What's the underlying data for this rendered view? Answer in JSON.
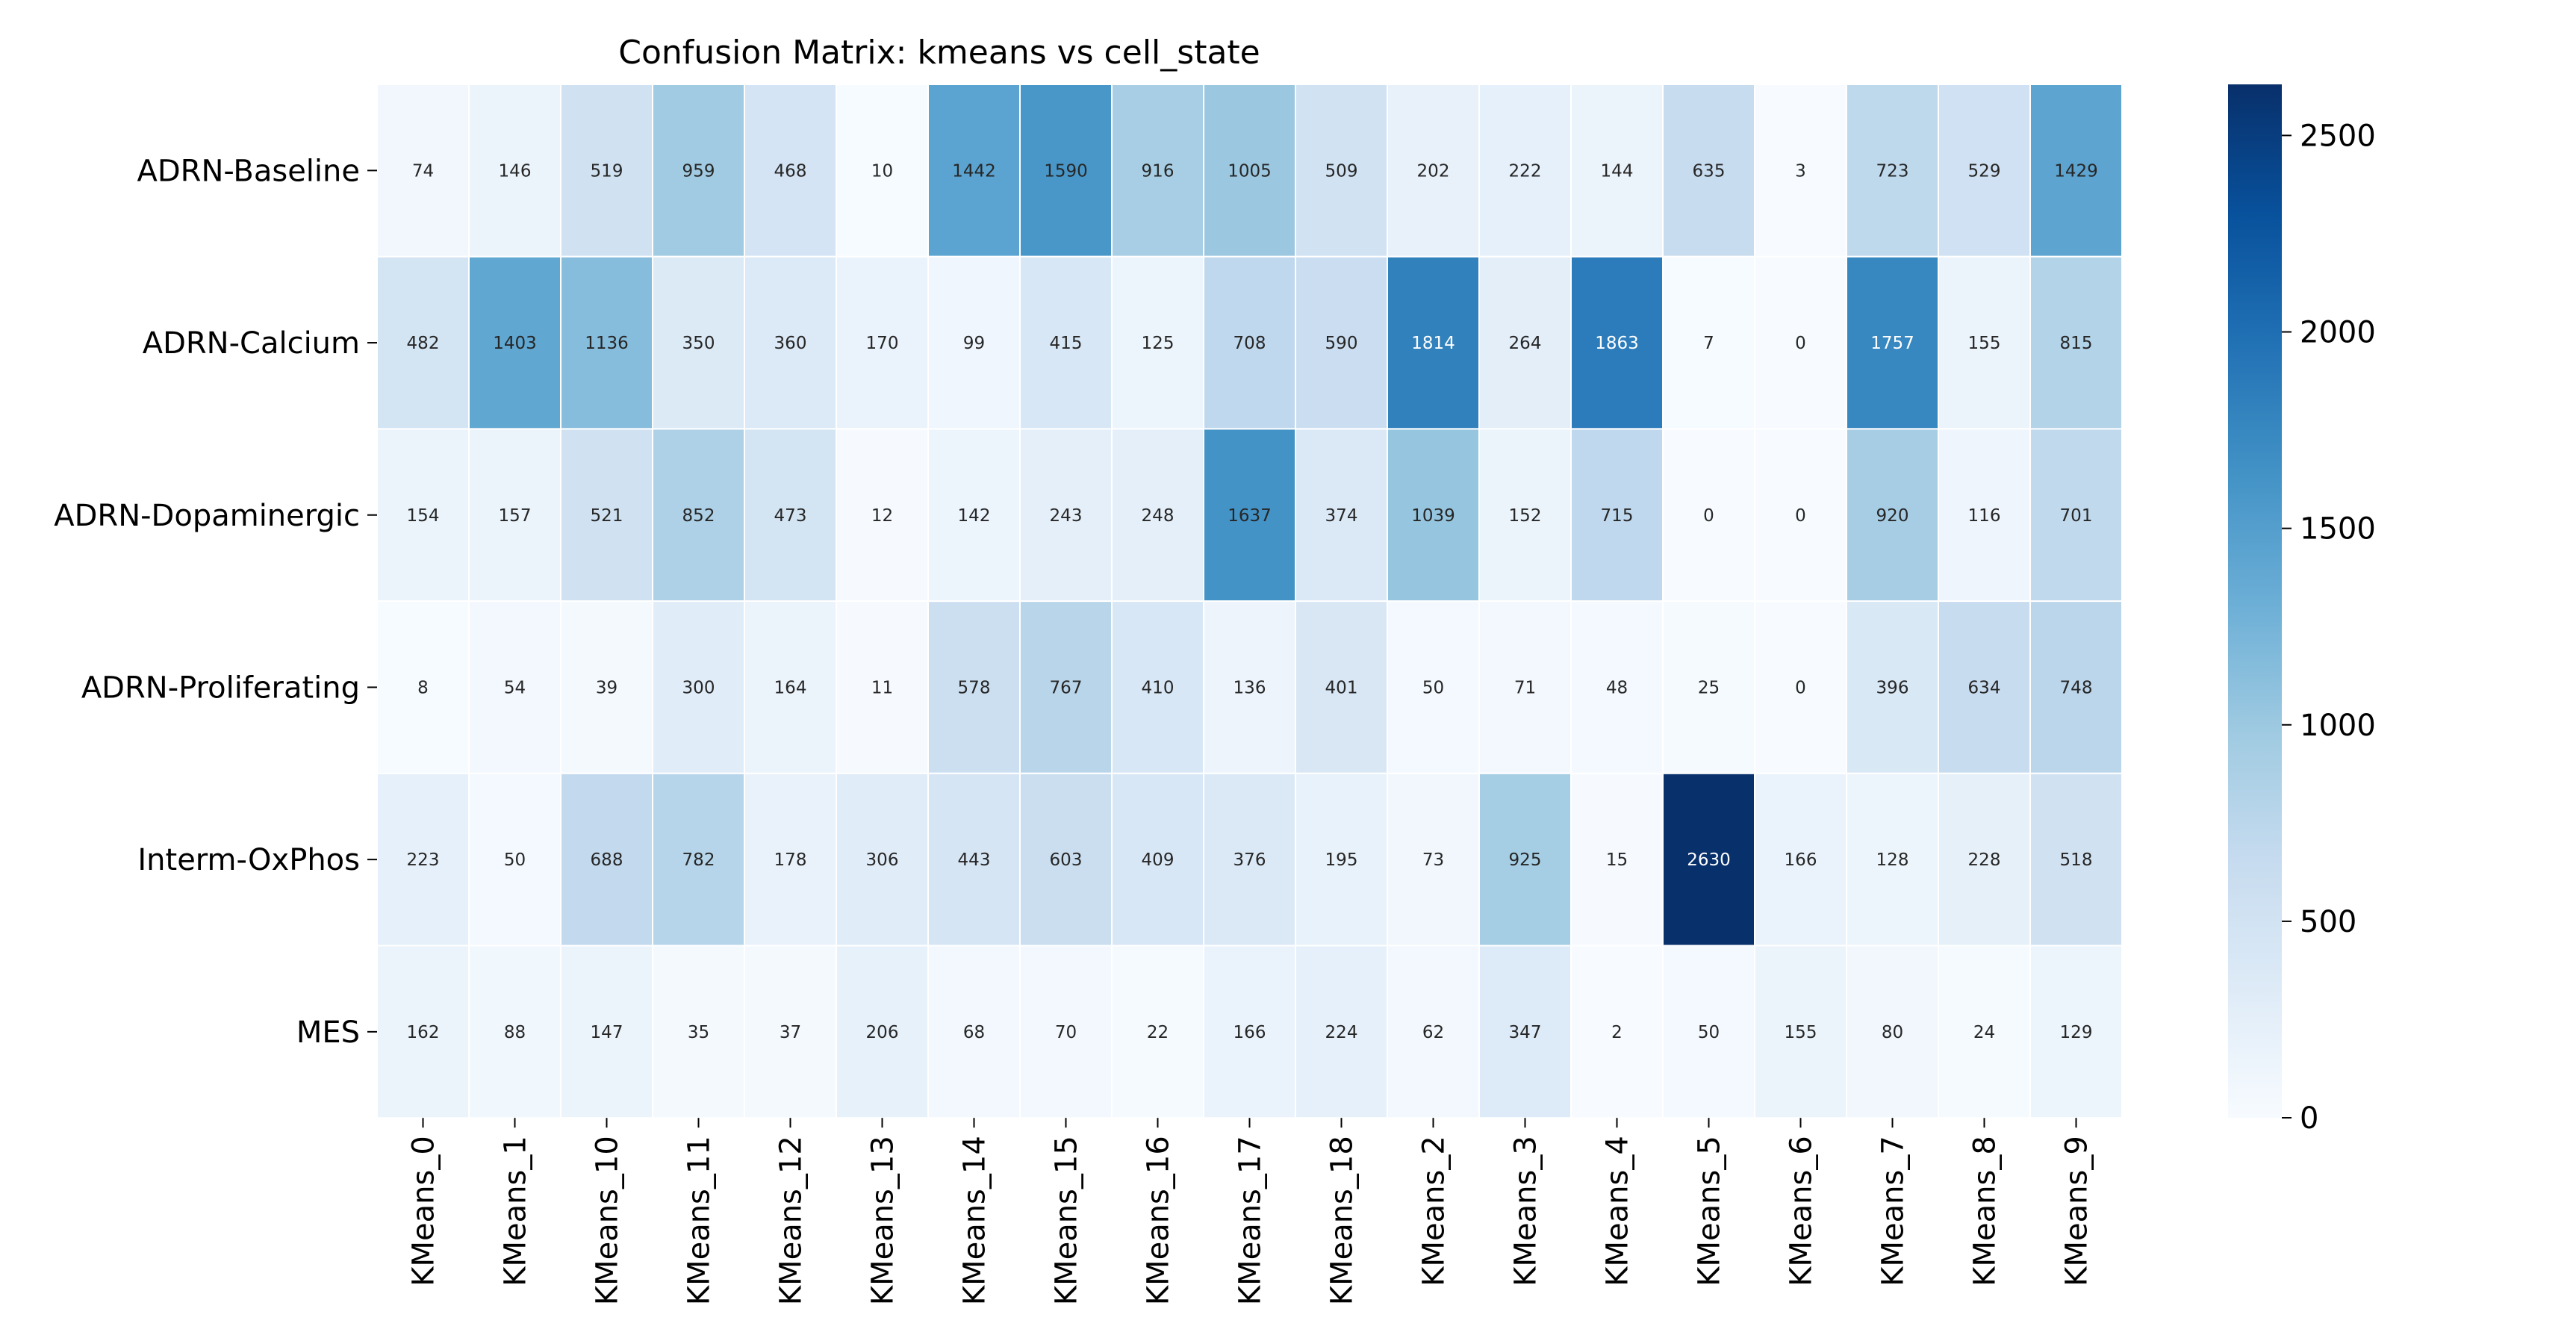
{
  "chart_data": {
    "type": "heatmap",
    "title": "Confusion Matrix: kmeans vs cell_state",
    "xlabel": "",
    "ylabel": "",
    "columns": [
      "KMeans_0",
      "KMeans_1",
      "KMeans_10",
      "KMeans_11",
      "KMeans_12",
      "KMeans_13",
      "KMeans_14",
      "KMeans_15",
      "KMeans_16",
      "KMeans_17",
      "KMeans_18",
      "KMeans_2",
      "KMeans_3",
      "KMeans_4",
      "KMeans_5",
      "KMeans_6",
      "KMeans_7",
      "KMeans_8",
      "KMeans_9"
    ],
    "rows": [
      "ADRN-Baseline",
      "ADRN-Calcium",
      "ADRN-Dopaminergic",
      "ADRN-Proliferating",
      "Interm-OxPhos",
      "MES"
    ],
    "values": [
      [
        74,
        146,
        519,
        959,
        468,
        10,
        1442,
        1590,
        916,
        1005,
        509,
        202,
        222,
        144,
        635,
        3,
        723,
        529,
        1429
      ],
      [
        482,
        1403,
        1136,
        350,
        360,
        170,
        99,
        415,
        125,
        708,
        590,
        1814,
        264,
        1863,
        7,
        0,
        1757,
        155,
        815
      ],
      [
        154,
        157,
        521,
        852,
        473,
        12,
        142,
        243,
        248,
        1637,
        374,
        1039,
        152,
        715,
        0,
        0,
        920,
        116,
        701
      ],
      [
        8,
        54,
        39,
        300,
        164,
        11,
        578,
        767,
        410,
        136,
        401,
        50,
        71,
        48,
        25,
        0,
        396,
        634,
        748
      ],
      [
        223,
        50,
        688,
        782,
        178,
        306,
        443,
        603,
        409,
        376,
        195,
        73,
        925,
        15,
        2630,
        166,
        128,
        228,
        518
      ],
      [
        162,
        88,
        147,
        35,
        37,
        206,
        68,
        70,
        22,
        166,
        224,
        62,
        347,
        2,
        50,
        155,
        80,
        24,
        129
      ]
    ],
    "colormap": "Blues",
    "colorbar": {
      "min": 0,
      "max": 2630,
      "ticks": [
        0,
        500,
        1000,
        1500,
        2000,
        2500
      ]
    },
    "annotations": true,
    "grid": false,
    "legend": "colorbar-right"
  }
}
